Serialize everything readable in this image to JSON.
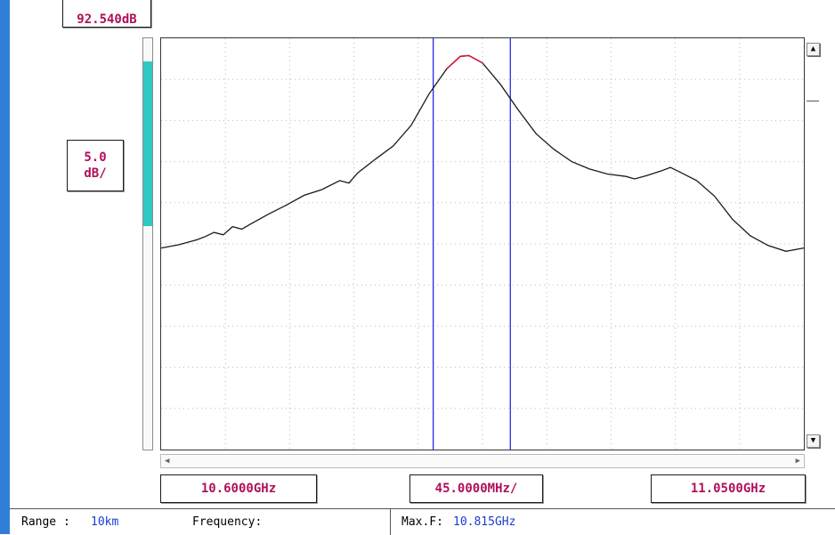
{
  "reference_level": "92.540dB",
  "scale": {
    "value": "5.0",
    "unit": "dB/"
  },
  "scale_bar_fill": 0.4,
  "frequency": {
    "start": "10.6000GHz",
    "span": "45.0000MHz/",
    "stop": "11.0500GHz"
  },
  "scroll": {
    "up_icon": "arrow-up-icon",
    "down_icon": "arrow-down-icon",
    "left_icon": "arrow-left-icon",
    "right_icon": "arrow-right-icon"
  },
  "status_bar": {
    "range_label": "Range : ",
    "range_value": "10km",
    "frequency_label": "Frequency:",
    "frequency_value": "",
    "maxf_label": "Max.F: ",
    "maxf_value": "10.815GHz"
  },
  "colors": {
    "trace": "#1a1a1a",
    "peak_highlight": "#d21a3a",
    "markers": "#2a2ae6",
    "labels": "#b0105a",
    "scale_fill": "#2ec9c3"
  },
  "chart_data": {
    "type": "line",
    "x_unit": "GHz",
    "xlim": [
      10.6,
      11.05
    ],
    "x_divisions": 10,
    "y_divisions": 10,
    "y_scale_db_per_div": 5.0,
    "reference_level_db": 92.54,
    "grid": true,
    "markers_ghz": [
      10.7905,
      10.8445
    ],
    "peak_ghz": 10.815,
    "series": [
      {
        "x": [
          10.6,
          10.6125,
          10.625,
          10.631,
          10.637,
          10.6435,
          10.65,
          10.6565,
          10.6625,
          10.675,
          10.6875,
          10.7,
          10.7125,
          10.725,
          10.7315,
          10.7375,
          10.75,
          10.7625,
          10.775,
          10.7875,
          10.8,
          10.8095,
          10.8155,
          10.825,
          10.8375,
          10.85,
          10.8625,
          10.875,
          10.8875,
          10.9,
          10.9125,
          10.9255,
          10.9315,
          10.94,
          10.9505,
          10.9565,
          10.9625,
          10.975,
          10.9875,
          11.0,
          11.0125,
          11.025,
          11.0375,
          11.05
        ],
        "y": [
          -25.5,
          -25.1,
          -24.5,
          -24.1,
          -23.6,
          -23.9,
          -22.9,
          -23.2,
          -22.6,
          -21.4,
          -20.3,
          -19.1,
          -18.4,
          -17.3,
          -17.6,
          -16.4,
          -14.7,
          -13.1,
          -10.6,
          -6.8,
          -3.7,
          -2.2,
          -2.1,
          -3.0,
          -5.6,
          -8.7,
          -11.6,
          -13.5,
          -15.0,
          -15.9,
          -16.5,
          -16.8,
          -17.1,
          -16.7,
          -16.1,
          -15.7,
          -16.2,
          -17.3,
          -19.2,
          -22.0,
          -24.0,
          -25.2,
          -25.9,
          -25.5
        ]
      }
    ]
  }
}
